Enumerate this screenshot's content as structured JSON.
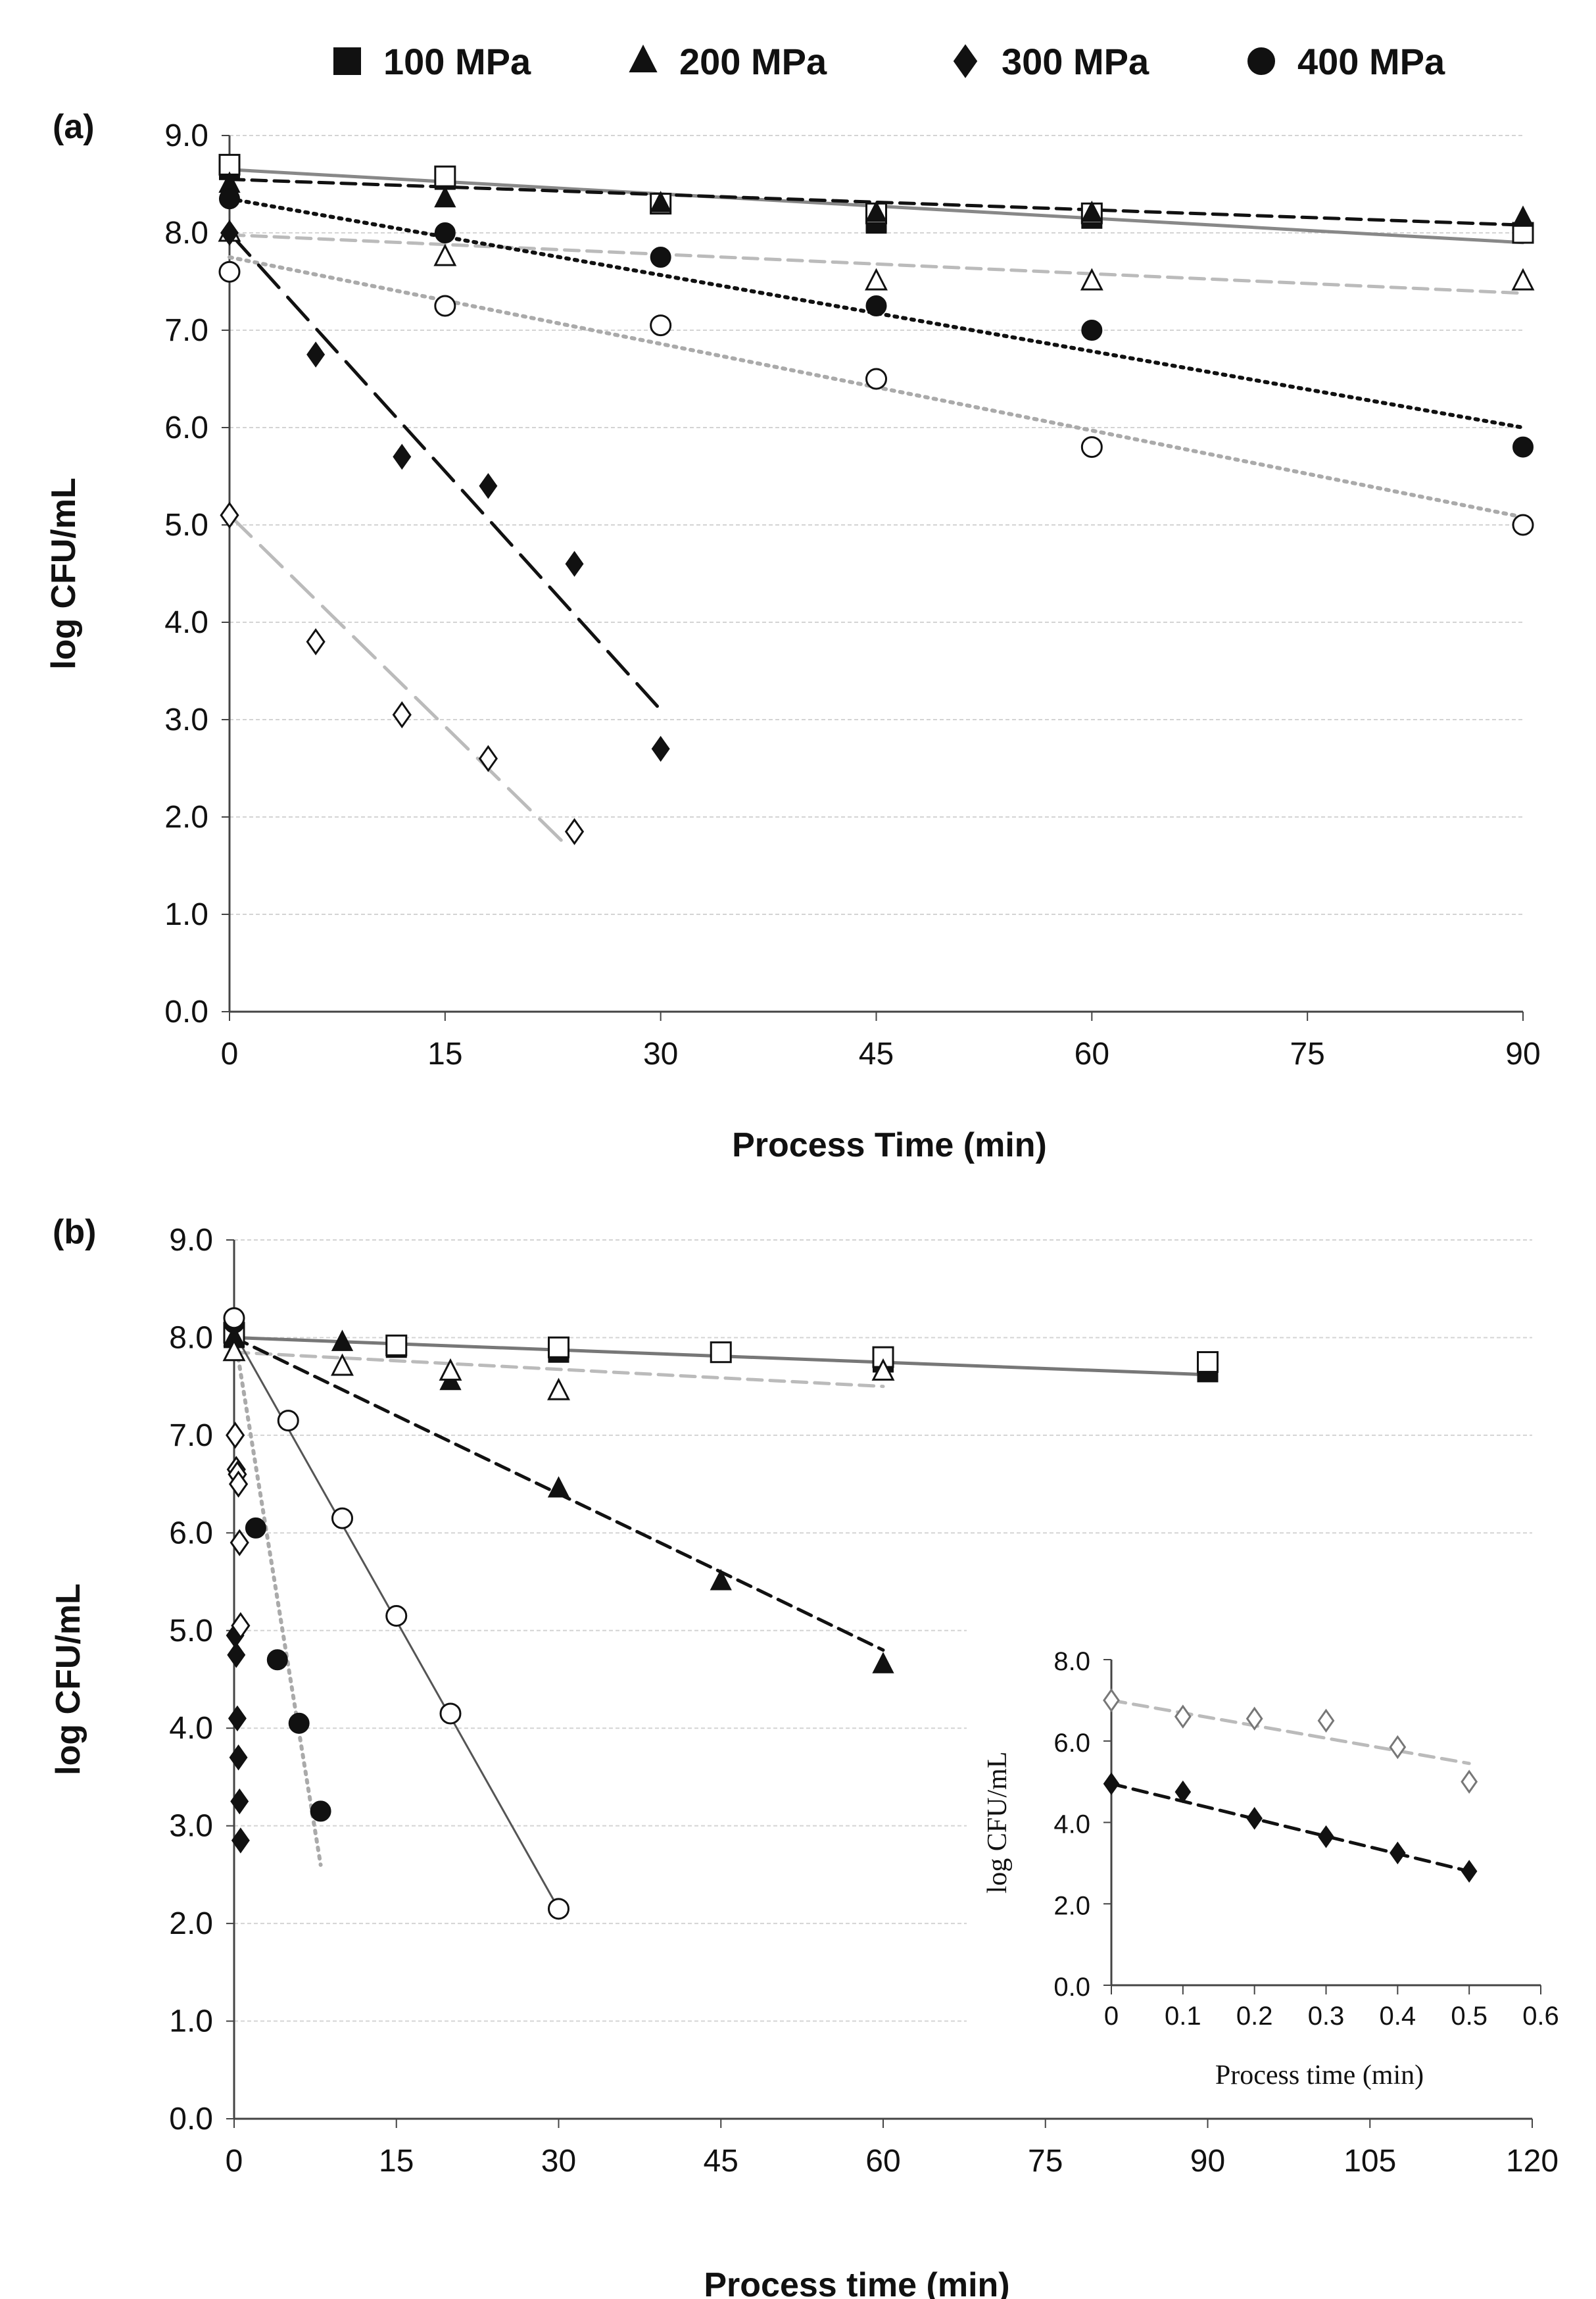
{
  "legend": {
    "items": [
      {
        "label": "100 MPa",
        "marker": "square"
      },
      {
        "label": "200 MPa",
        "marker": "triangle"
      },
      {
        "label": "300 MPa",
        "marker": "diamond"
      },
      {
        "label": "400 MPa",
        "marker": "circle"
      }
    ]
  },
  "chart_data": [
    {
      "panel": "(a)",
      "type": "scatter",
      "xlabel": "Process Time (min)",
      "ylabel": "log CFU/mL",
      "xlim": [
        0,
        90
      ],
      "ylim": [
        0,
        9
      ],
      "xticks": [
        0,
        15,
        30,
        45,
        60,
        75,
        90
      ],
      "yticks": [
        "0.0",
        "1.0",
        "2.0",
        "3.0",
        "4.0",
        "5.0",
        "6.0",
        "7.0",
        "8.0",
        "9.0"
      ],
      "grid": "horizontal",
      "series": [
        {
          "marker": "square",
          "filled": true,
          "color": "#111111",
          "points": [
            [
              0,
              8.65
            ],
            [
              15,
              8.55
            ],
            [
              30,
              8.3
            ],
            [
              45,
              8.1
            ],
            [
              60,
              8.15
            ],
            [
              90,
              8.0
            ]
          ]
        },
        {
          "marker": "square",
          "filled": false,
          "color": "#111111",
          "points": [
            [
              0,
              8.7
            ],
            [
              15,
              8.58
            ],
            [
              30,
              8.3
            ],
            [
              45,
              8.2
            ],
            [
              60,
              8.2
            ],
            [
              90,
              8.0
            ]
          ]
        },
        {
          "marker": "triangle",
          "filled": true,
          "color": "#111111",
          "points": [
            [
              0,
              8.5
            ],
            [
              15,
              8.35
            ],
            [
              30,
              8.3
            ],
            [
              45,
              8.2
            ],
            [
              60,
              8.2
            ],
            [
              90,
              8.15
            ]
          ]
        },
        {
          "marker": "triangle",
          "filled": false,
          "color": "#111111",
          "points": [
            [
              0,
              8.0
            ],
            [
              15,
              7.75
            ],
            [
              45,
              7.5
            ],
            [
              60,
              7.5
            ],
            [
              90,
              7.5
            ]
          ]
        },
        {
          "marker": "diamond",
          "filled": true,
          "color": "#111111",
          "points": [
            [
              0,
              8.0
            ],
            [
              6,
              6.75
            ],
            [
              12,
              5.7
            ],
            [
              18,
              5.4
            ],
            [
              24,
              4.6
            ],
            [
              30,
              2.7
            ]
          ]
        },
        {
          "marker": "diamond",
          "filled": false,
          "color": "#111111",
          "points": [
            [
              0,
              5.1
            ],
            [
              6,
              3.8
            ],
            [
              12,
              3.05
            ],
            [
              18,
              2.6
            ],
            [
              24,
              1.85
            ]
          ]
        },
        {
          "marker": "circle",
          "filled": true,
          "color": "#111111",
          "points": [
            [
              0,
              8.35
            ],
            [
              15,
              8.0
            ],
            [
              30,
              7.75
            ],
            [
              45,
              7.25
            ],
            [
              60,
              7.0
            ],
            [
              90,
              5.8
            ]
          ]
        },
        {
          "marker": "circle",
          "filled": false,
          "color": "#111111",
          "points": [
            [
              0,
              7.6
            ],
            [
              15,
              7.25
            ],
            [
              30,
              7.05
            ],
            [
              45,
              6.5
            ],
            [
              60,
              5.8
            ],
            [
              90,
              5.0
            ]
          ]
        }
      ],
      "trendlines": [
        {
          "from": [
            0,
            8.65
          ],
          "to": [
            90,
            7.9
          ],
          "color": "#888888",
          "dash": "solid"
        },
        {
          "from": [
            0,
            8.55
          ],
          "to": [
            90,
            8.08
          ],
          "color": "#111111",
          "dash": "dash"
        },
        {
          "from": [
            0,
            7.98
          ],
          "to": [
            90,
            7.38
          ],
          "color": "#bbbbbb",
          "dash": "dash"
        },
        {
          "from": [
            0,
            8.35
          ],
          "to": [
            90,
            6.0
          ],
          "color": "#111111",
          "dash": "dot"
        },
        {
          "from": [
            0,
            7.75
          ],
          "to": [
            90,
            5.08
          ],
          "color": "#aaaaaa",
          "dash": "dot"
        },
        {
          "from": [
            0,
            8.0
          ],
          "to": [
            30,
            3.1
          ],
          "color": "#111111",
          "dash": "longdash"
        },
        {
          "from": [
            0,
            5.1
          ],
          "to": [
            23.5,
            1.7
          ],
          "color": "#bbbbbb",
          "dash": "longdash"
        }
      ]
    },
    {
      "panel": "(b)",
      "type": "scatter",
      "xlabel": "Process time (min)",
      "ylabel": "log CFU/mL",
      "xlim": [
        0,
        120
      ],
      "ylim": [
        0,
        9
      ],
      "xticks": [
        0,
        15,
        30,
        45,
        60,
        75,
        90,
        105,
        120
      ],
      "yticks": [
        "0.0",
        "1.0",
        "2.0",
        "3.0",
        "4.0",
        "5.0",
        "6.0",
        "7.0",
        "8.0",
        "9.0"
      ],
      "grid": "horizontal",
      "series": [
        {
          "marker": "square",
          "filled": true,
          "color": "#111111",
          "points": [
            [
              0,
              8.0
            ],
            [
              15,
              7.9
            ],
            [
              30,
              7.85
            ],
            [
              45,
              7.85
            ],
            [
              60,
              7.75
            ],
            [
              90,
              7.65
            ]
          ]
        },
        {
          "marker": "square",
          "filled": false,
          "color": "#111111",
          "points": [
            [
              0,
              8.05
            ],
            [
              15,
              7.92
            ],
            [
              30,
              7.9
            ],
            [
              45,
              7.85
            ],
            [
              60,
              7.8
            ],
            [
              90,
              7.75
            ]
          ]
        },
        {
          "marker": "triangle",
          "filled": true,
          "color": "#111111",
          "points": [
            [
              0,
              8.0
            ],
            [
              10,
              7.95
            ],
            [
              20,
              7.55
            ],
            [
              30,
              6.45
            ],
            [
              45,
              5.5
            ],
            [
              60,
              4.65
            ]
          ]
        },
        {
          "marker": "triangle",
          "filled": false,
          "color": "#111111",
          "points": [
            [
              0,
              7.85
            ],
            [
              10,
              7.7
            ],
            [
              20,
              7.65
            ],
            [
              30,
              7.45
            ],
            [
              60,
              7.65
            ]
          ]
        },
        {
          "marker": "diamond",
          "filled": true,
          "color": "#111111",
          "points": [
            [
              0.1,
              4.95
            ],
            [
              0.2,
              4.75
            ],
            [
              0.3,
              4.1
            ],
            [
              0.4,
              3.7
            ],
            [
              0.5,
              3.25
            ],
            [
              0.6,
              2.85
            ]
          ]
        },
        {
          "marker": "diamond",
          "filled": false,
          "color": "#111111",
          "points": [
            [
              0.1,
              7.0
            ],
            [
              0.2,
              6.65
            ],
            [
              0.3,
              6.6
            ],
            [
              0.4,
              6.5
            ],
            [
              0.5,
              5.9
            ],
            [
              0.6,
              5.05
            ]
          ]
        },
        {
          "marker": "circle",
          "filled": true,
          "color": "#111111",
          "points": [
            [
              0,
              8.15
            ],
            [
              2,
              6.05
            ],
            [
              4,
              4.7
            ],
            [
              6,
              4.05
            ],
            [
              8,
              3.15
            ]
          ]
        },
        {
          "marker": "circle",
          "filled": false,
          "color": "#111111",
          "points": [
            [
              0,
              8.2
            ],
            [
              5,
              7.15
            ],
            [
              10,
              6.15
            ],
            [
              15,
              5.15
            ],
            [
              20,
              4.15
            ],
            [
              30,
              2.15
            ]
          ]
        }
      ],
      "trendlines": [
        {
          "from": [
            0,
            8.0
          ],
          "to": [
            90,
            7.62
          ],
          "color": "#777777",
          "dash": "solid"
        },
        {
          "from": [
            0,
            7.85
          ],
          "to": [
            60,
            7.5
          ],
          "color": "#bbbbbb",
          "dash": "dash"
        },
        {
          "from": [
            0,
            8.0
          ],
          "to": [
            60,
            4.8
          ],
          "color": "#111111",
          "dash": "dash"
        },
        {
          "from": [
            0,
            8.05
          ],
          "to": [
            30,
            2.15
          ],
          "color": "#555555",
          "dash": "solid-thin"
        },
        {
          "from": [
            0,
            8.05
          ],
          "to": [
            8,
            2.6
          ],
          "color": "#aaaaaa",
          "dash": "dot"
        }
      ],
      "inset": {
        "type": "scatter",
        "xlabel": "Process time (min)",
        "ylabel": "log CFU/mL",
        "xlim": [
          0,
          0.6
        ],
        "ylim": [
          0,
          8
        ],
        "xticks": [
          "0",
          "0.1",
          "0.2",
          "0.3",
          "0.4",
          "0.5",
          "0.6"
        ],
        "yticks": [
          "0.0",
          "2.0",
          "4.0",
          "6.0",
          "8.0"
        ],
        "series": [
          {
            "marker": "diamond",
            "filled": false,
            "color": "#777777",
            "points": [
              [
                0,
                7.0
              ],
              [
                0.1,
                6.6
              ],
              [
                0.2,
                6.55
              ],
              [
                0.3,
                6.5
              ],
              [
                0.4,
                5.85
              ],
              [
                0.5,
                5.0
              ]
            ]
          },
          {
            "marker": "diamond",
            "filled": true,
            "color": "#111111",
            "points": [
              [
                0,
                4.95
              ],
              [
                0.1,
                4.75
              ],
              [
                0.2,
                4.1
              ],
              [
                0.3,
                3.65
              ],
              [
                0.4,
                3.25
              ],
              [
                0.5,
                2.8
              ]
            ]
          }
        ],
        "trendlines": [
          {
            "from": [
              0,
              7.0
            ],
            "to": [
              0.5,
              5.45
            ],
            "color": "#bbbbbb",
            "dash": "dash"
          },
          {
            "from": [
              0,
              4.95
            ],
            "to": [
              0.5,
              2.8
            ],
            "color": "#111111",
            "dash": "dash"
          }
        ]
      }
    }
  ]
}
